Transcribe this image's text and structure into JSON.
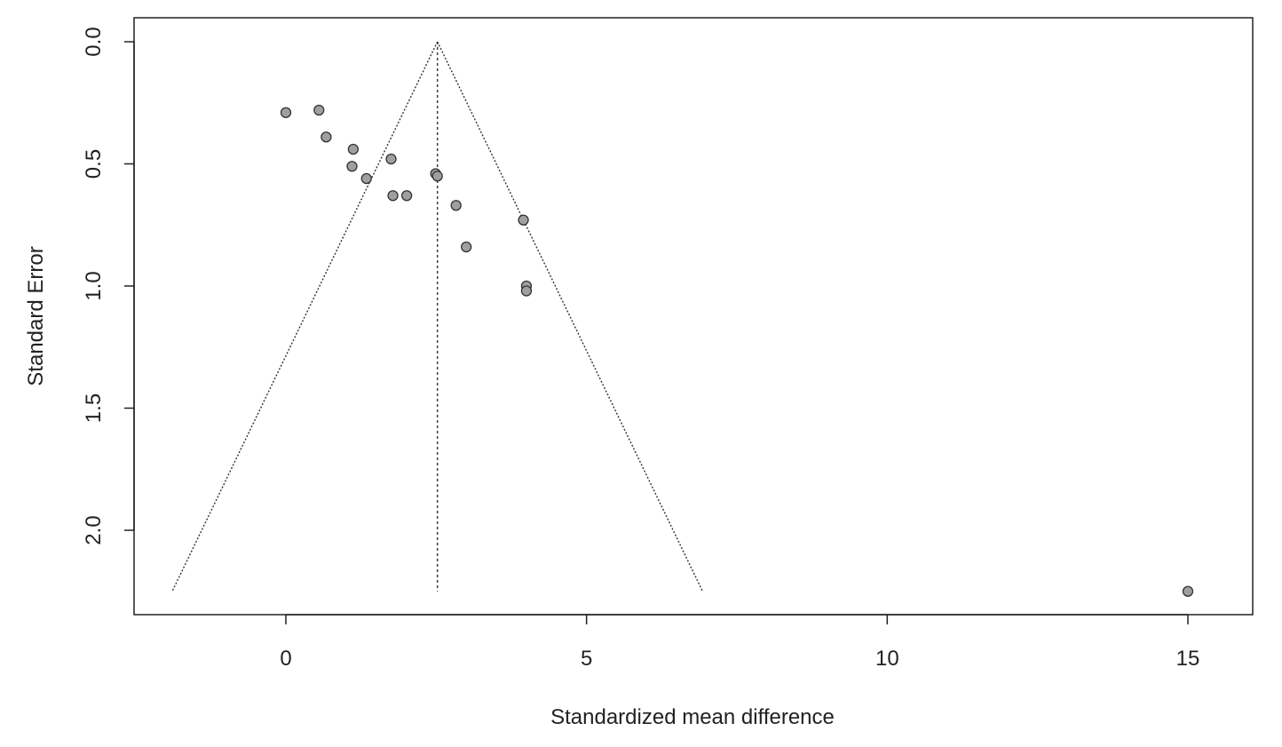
{
  "chart_data": {
    "type": "scatter",
    "title": "",
    "xlabel": "Standardized mean difference",
    "ylabel": "Standard Error",
    "xlim": [
      -2.5,
      16.1
    ],
    "ylim": [
      0.0,
      2.3
    ],
    "y_reversed": true,
    "xticks": [
      0,
      5,
      10,
      15
    ],
    "xtick_labels": [
      "0",
      "5",
      "10",
      "15"
    ],
    "yticks": [
      0.0,
      0.5,
      1.0,
      1.5,
      2.0
    ],
    "ytick_labels": [
      "0.0",
      "0.5",
      "1.0",
      "1.5",
      "2.0"
    ],
    "grid": false,
    "summary_effect": 2.52,
    "funnel_max_se": 2.25,
    "points": [
      {
        "x": 0.0,
        "y": 0.29
      },
      {
        "x": 0.55,
        "y": 0.28
      },
      {
        "x": 0.67,
        "y": 0.39
      },
      {
        "x": 1.12,
        "y": 0.44
      },
      {
        "x": 1.1,
        "y": 0.51
      },
      {
        "x": 1.34,
        "y": 0.56
      },
      {
        "x": 1.75,
        "y": 0.48
      },
      {
        "x": 1.78,
        "y": 0.63
      },
      {
        "x": 2.01,
        "y": 0.63
      },
      {
        "x": 2.49,
        "y": 0.54
      },
      {
        "x": 2.52,
        "y": 0.55
      },
      {
        "x": 2.83,
        "y": 0.67
      },
      {
        "x": 3.0,
        "y": 0.84
      },
      {
        "x": 3.95,
        "y": 0.73
      },
      {
        "x": 4.0,
        "y": 1.0
      },
      {
        "x": 4.0,
        "y": 1.02
      },
      {
        "x": 15.0,
        "y": 2.25
      }
    ],
    "colors": {
      "point_fill": "#a0a0a0",
      "point_stroke": "#333333",
      "axis": "#222222",
      "funnel": "#333333"
    }
  }
}
